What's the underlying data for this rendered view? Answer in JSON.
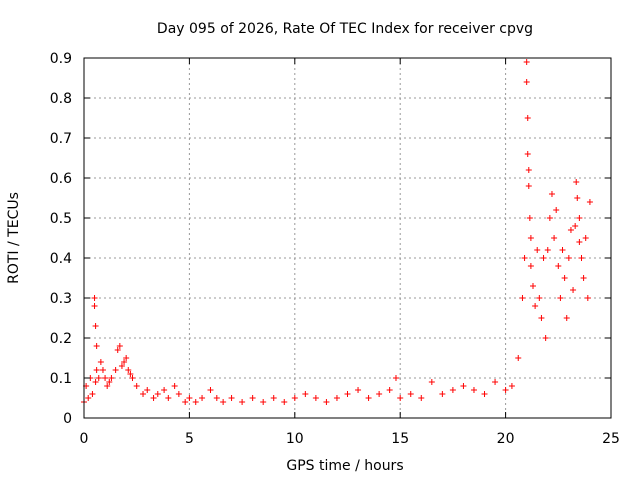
{
  "chart_data": {
    "type": "scatter",
    "title": "Day 095 of 2026, Rate Of TEC Index for receiver cpvg",
    "xlabel": "GPS time / hours",
    "ylabel": "ROTI / TECUs",
    "xlim": [
      0,
      25
    ],
    "ylim": [
      0,
      0.9
    ],
    "xticks": [
      "0",
      "5",
      "10",
      "15",
      "20",
      "25"
    ],
    "yticks": [
      "0",
      "0.1",
      "0.2",
      "0.3",
      "0.4",
      "0.5",
      "0.6",
      "0.7",
      "0.8",
      "0.9"
    ],
    "grid": true,
    "marker": "+",
    "series": [
      {
        "color": "#ff0000",
        "x": [
          0.0,
          0.1,
          0.2,
          0.3,
          0.4,
          0.5,
          0.5,
          0.55,
          0.6,
          0.6,
          0.55,
          0.7,
          0.8,
          0.9,
          1.0,
          1.1,
          1.2,
          1.3,
          1.5,
          1.6,
          1.7,
          1.8,
          1.9,
          2.0,
          2.1,
          2.2,
          2.3,
          2.5,
          2.8,
          3.0,
          3.3,
          3.5,
          3.8,
          4.0,
          4.3,
          4.5,
          4.8,
          5.0,
          5.3,
          5.6,
          6.0,
          6.3,
          6.6,
          7.0,
          7.5,
          8.0,
          8.5,
          9.0,
          9.5,
          10.0,
          10.5,
          11.0,
          11.5,
          12.0,
          12.5,
          13.0,
          13.5,
          14.0,
          14.5,
          14.8,
          15.0,
          15.5,
          16.0,
          16.5,
          17.0,
          17.5,
          18.0,
          18.5,
          19.0,
          19.5,
          20.0,
          20.3,
          20.6,
          20.8,
          20.9,
          21.0,
          21.0,
          21.05,
          21.05,
          21.1,
          21.1,
          21.15,
          21.2,
          21.2,
          21.3,
          21.4,
          21.5,
          21.6,
          21.7,
          21.8,
          21.9,
          22.0,
          22.1,
          22.2,
          22.3,
          22.4,
          22.5,
          22.6,
          22.7,
          22.8,
          22.9,
          23.0,
          23.1,
          23.2,
          23.3,
          23.35,
          23.4,
          23.5,
          23.5,
          23.6,
          23.7,
          23.8,
          23.9,
          24.0
        ],
        "y": [
          0.04,
          0.08,
          0.05,
          0.1,
          0.06,
          0.28,
          0.3,
          0.23,
          0.18,
          0.12,
          0.09,
          0.1,
          0.14,
          0.12,
          0.1,
          0.08,
          0.09,
          0.1,
          0.12,
          0.17,
          0.18,
          0.13,
          0.14,
          0.15,
          0.12,
          0.11,
          0.1,
          0.08,
          0.06,
          0.07,
          0.05,
          0.06,
          0.07,
          0.05,
          0.08,
          0.06,
          0.04,
          0.05,
          0.04,
          0.05,
          0.07,
          0.05,
          0.04,
          0.05,
          0.04,
          0.05,
          0.04,
          0.05,
          0.04,
          0.05,
          0.06,
          0.05,
          0.04,
          0.05,
          0.06,
          0.07,
          0.05,
          0.06,
          0.07,
          0.1,
          0.05,
          0.06,
          0.05,
          0.09,
          0.06,
          0.07,
          0.08,
          0.07,
          0.06,
          0.09,
          0.07,
          0.08,
          0.15,
          0.3,
          0.4,
          0.89,
          0.84,
          0.75,
          0.66,
          0.62,
          0.58,
          0.5,
          0.45,
          0.38,
          0.33,
          0.28,
          0.42,
          0.3,
          0.25,
          0.4,
          0.2,
          0.42,
          0.5,
          0.56,
          0.45,
          0.52,
          0.38,
          0.3,
          0.42,
          0.35,
          0.25,
          0.4,
          0.47,
          0.32,
          0.48,
          0.59,
          0.55,
          0.5,
          0.44,
          0.4,
          0.35,
          0.45,
          0.3,
          0.54
        ]
      }
    ]
  }
}
